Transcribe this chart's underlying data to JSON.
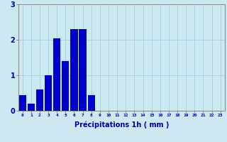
{
  "categories": [
    0,
    1,
    2,
    3,
    4,
    5,
    6,
    7,
    8,
    9,
    10,
    11,
    12,
    13,
    14,
    15,
    16,
    17,
    18,
    19,
    20,
    21,
    22,
    23
  ],
  "values": [
    0.45,
    0.2,
    0.6,
    1.0,
    2.05,
    1.4,
    2.3,
    2.3,
    0.45,
    0,
    0,
    0,
    0,
    0,
    0,
    0,
    0,
    0,
    0,
    0,
    0,
    0,
    0,
    0
  ],
  "bar_color": "#0000cc",
  "background_color": "#cce8f0",
  "grid_color": "#aaccdd",
  "xlabel": "Précipitations 1h ( mm )",
  "xlabel_color": "#0000bb",
  "tick_color": "#0000bb",
  "axis_color": "#888888",
  "ylim": [
    0,
    3
  ],
  "xlim": [
    -0.5,
    23.5
  ],
  "yticks": [
    0,
    1,
    2,
    3
  ],
  "xticks": [
    0,
    1,
    2,
    3,
    4,
    5,
    6,
    7,
    8,
    9,
    10,
    11,
    12,
    13,
    14,
    15,
    16,
    17,
    18,
    19,
    20,
    21,
    22,
    23
  ]
}
